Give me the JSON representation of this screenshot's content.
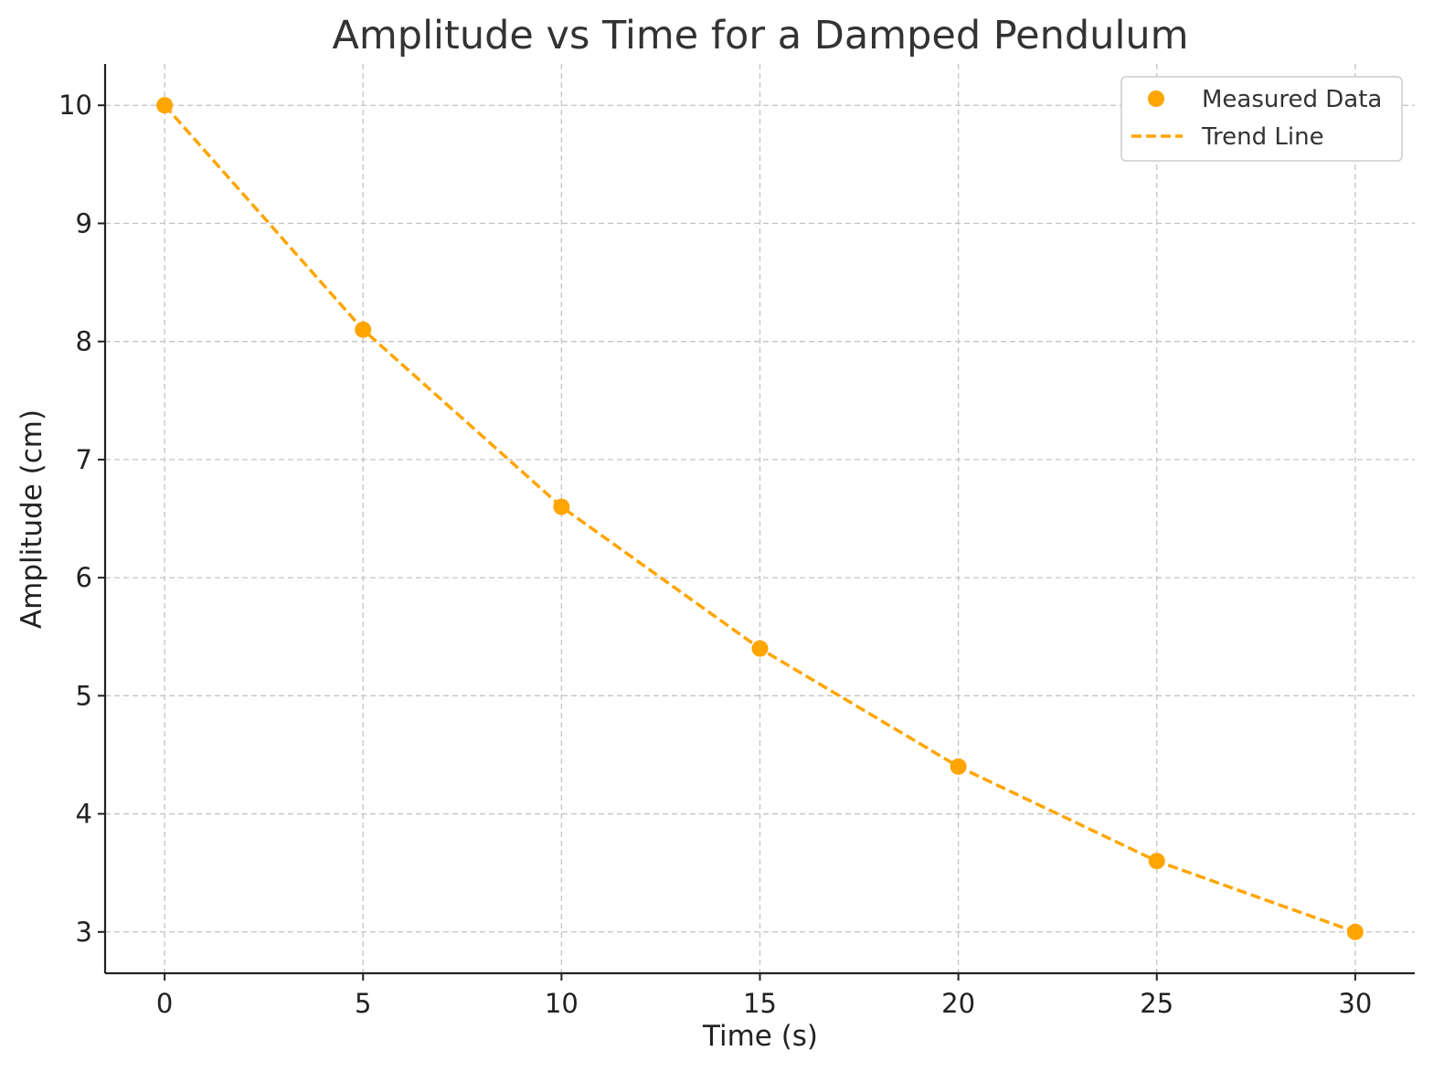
{
  "chart_data": {
    "type": "line",
    "title": "Amplitude vs Time for a Damped Pendulum",
    "xlabel": "Time (s)",
    "ylabel": "Amplitude (cm)",
    "xlim": [
      -1.5,
      31.5
    ],
    "ylim": [
      2.65,
      10.35
    ],
    "x_ticks": [
      0,
      5,
      10,
      15,
      20,
      25,
      30
    ],
    "y_ticks": [
      3,
      4,
      5,
      6,
      7,
      8,
      9,
      10
    ],
    "grid": true,
    "legend_position": "top-right",
    "series": [
      {
        "name": "Measured Data",
        "kind": "scatter",
        "color": "#FFA500",
        "x": [
          0,
          5,
          10,
          15,
          20,
          25,
          30
        ],
        "y": [
          10.0,
          8.1,
          6.6,
          5.4,
          4.4,
          3.6,
          3.0
        ]
      },
      {
        "name": "Trend Line",
        "kind": "line",
        "style": "dashed",
        "color": "#FFA500",
        "x": [
          0,
          5,
          10,
          15,
          20,
          25,
          30
        ],
        "y": [
          10.0,
          8.1,
          6.6,
          5.4,
          4.4,
          3.6,
          3.0
        ]
      }
    ]
  }
}
